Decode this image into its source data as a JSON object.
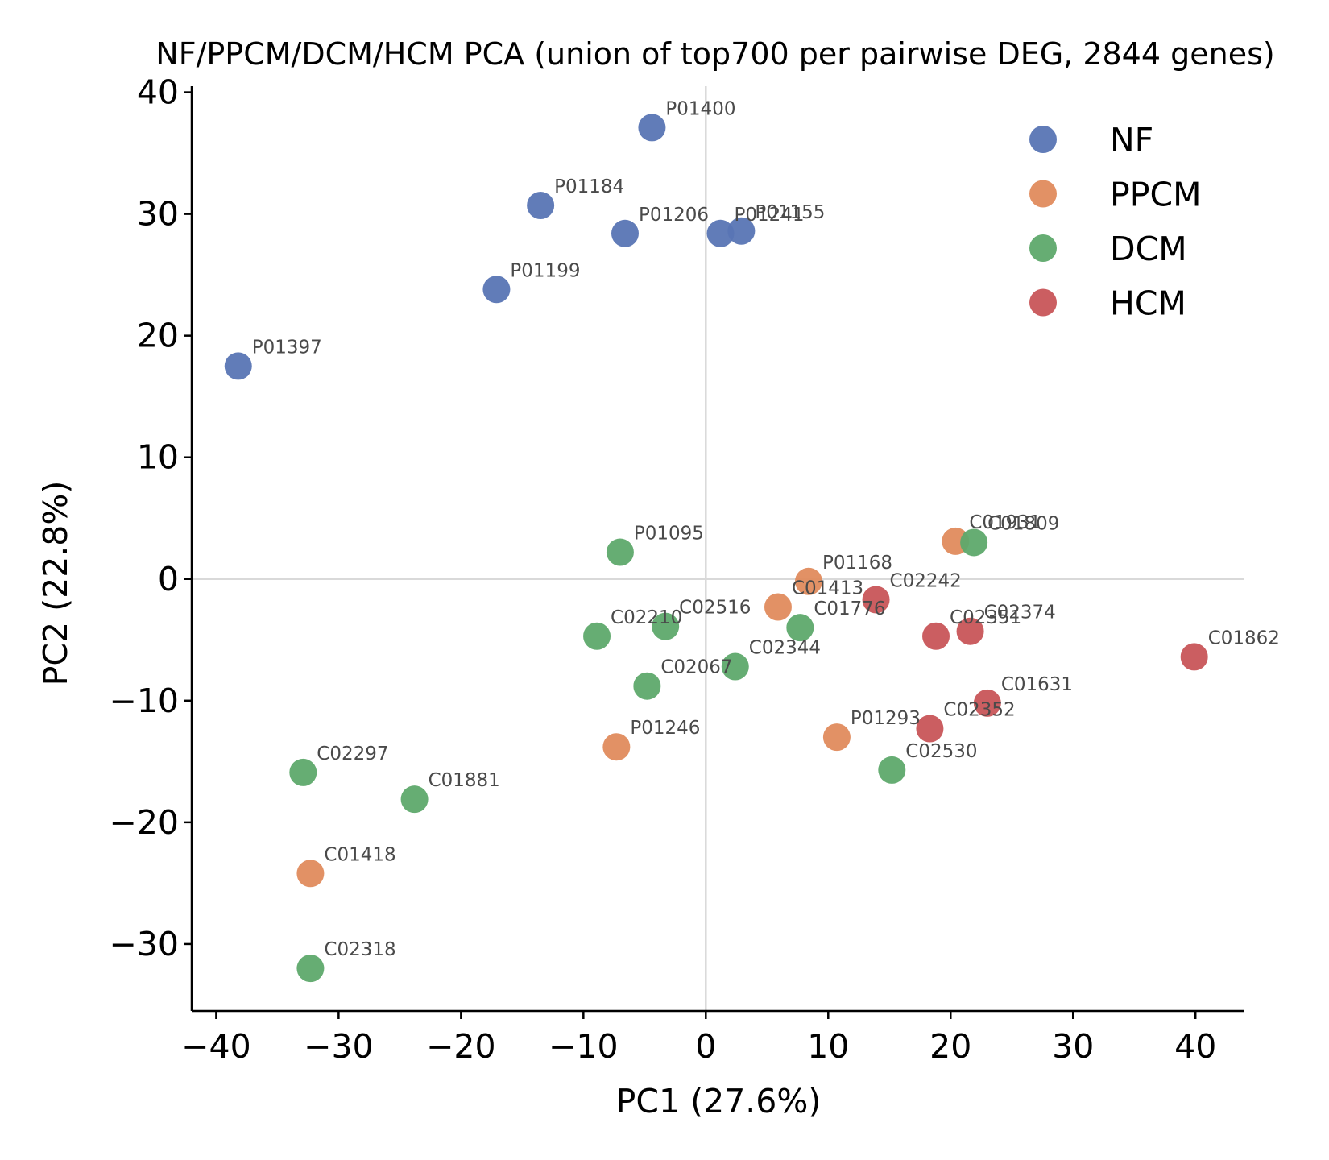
{
  "chart_data": {
    "type": "scatter",
    "title": "NF/PPCM/DCM/HCM PCA (union of top700 per pairwise DEG, 2844 genes)",
    "xlabel": "PC1 (27.6%)",
    "ylabel": "PC2 (22.8%)",
    "xlim": [
      -42,
      44
    ],
    "ylim": [
      -35.5,
      40.5
    ],
    "xticks": [
      -40,
      -30,
      -20,
      -10,
      0,
      10,
      20,
      30,
      40
    ],
    "xtick_labels": [
      "−40",
      "−30",
      "−20",
      "−10",
      "0",
      "10",
      "20",
      "30",
      "40"
    ],
    "yticks": [
      -30,
      -20,
      -10,
      0,
      10,
      20,
      30,
      40
    ],
    "ytick_labels": [
      "−30",
      "−20",
      "−10",
      "0",
      "10",
      "20",
      "30",
      "40"
    ],
    "reference_lines": {
      "x": 0,
      "y": 0
    },
    "grid": false,
    "legend_position": "top-right",
    "series": [
      {
        "name": "NF",
        "color": "#5875b4",
        "points": [
          {
            "label": "P01400",
            "x": -4.4,
            "y": 37.1
          },
          {
            "label": "P01184",
            "x": -13.5,
            "y": 30.7
          },
          {
            "label": "P01206",
            "x": -6.6,
            "y": 28.4
          },
          {
            "label": "P01241",
            "x": 1.2,
            "y": 28.4
          },
          {
            "label": "P01155",
            "x": 2.9,
            "y": 28.6
          },
          {
            "label": "P01199",
            "x": -17.1,
            "y": 23.8
          },
          {
            "label": "P01397",
            "x": -38.2,
            "y": 17.5
          }
        ]
      },
      {
        "name": "PPCM",
        "color": "#e08b5d",
        "points": [
          {
            "label": "C01931",
            "x": 20.4,
            "y": 3.1
          },
          {
            "label": "P01168",
            "x": 8.4,
            "y": -0.2
          },
          {
            "label": "C01413",
            "x": 5.9,
            "y": -2.3
          },
          {
            "label": "P01246",
            "x": -7.3,
            "y": -13.8
          },
          {
            "label": "P01293",
            "x": 10.7,
            "y": -13.0
          },
          {
            "label": "C01418",
            "x": -32.3,
            "y": -24.2
          }
        ]
      },
      {
        "name": "DCM",
        "color": "#5ea96c",
        "points": [
          {
            "label": "C01809",
            "x": 21.9,
            "y": 3.0
          },
          {
            "label": "P01095",
            "x": -7.0,
            "y": 2.2
          },
          {
            "label": "C02210",
            "x": -8.9,
            "y": -4.7
          },
          {
            "label": "C02516",
            "x": -3.3,
            "y": -3.9
          },
          {
            "label": "C01776",
            "x": 7.7,
            "y": -4.0
          },
          {
            "label": "C02344",
            "x": 2.4,
            "y": -7.2
          },
          {
            "label": "C02067",
            "x": -4.8,
            "y": -8.8
          },
          {
            "label": "C02530",
            "x": 15.2,
            "y": -15.7
          },
          {
            "label": "C02297",
            "x": -32.9,
            "y": -15.9
          },
          {
            "label": "C01881",
            "x": -23.8,
            "y": -18.1
          },
          {
            "label": "C02318",
            "x": -32.3,
            "y": -32.0
          }
        ]
      },
      {
        "name": "HCM",
        "color": "#c85558",
        "points": [
          {
            "label": "C02242",
            "x": 13.9,
            "y": -1.7
          },
          {
            "label": "C02351",
            "x": 18.8,
            "y": -4.7
          },
          {
            "label": "C02374",
            "x": 21.6,
            "y": -4.3
          },
          {
            "label": "C01862",
            "x": 39.9,
            "y": -6.4
          },
          {
            "label": "C01631",
            "x": 23.0,
            "y": -10.2
          },
          {
            "label": "C02352",
            "x": 18.3,
            "y": -12.3
          }
        ]
      }
    ]
  }
}
